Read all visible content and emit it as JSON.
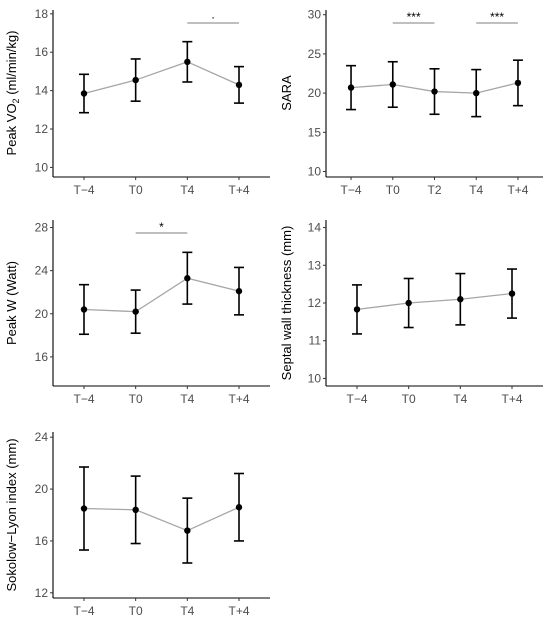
{
  "colors": {
    "axis": "#000000",
    "line": "#a6a6a6",
    "point": "#000000",
    "errorbar": "#000000",
    "bracket": "#7f7f7f",
    "tick_label": "#4d4d4d"
  },
  "chart_data": [
    {
      "id": "peak-vo2",
      "type": "line",
      "ylabel": "Peak VO",
      "ylabel_subscript": "2",
      "ylabel_suffix": " (ml/min/kg)",
      "categories": [
        "T−4",
        "T0",
        "T4",
        "T+4"
      ],
      "values": [
        13.85,
        14.55,
        15.5,
        14.3
      ],
      "errors": [
        1.0,
        1.1,
        1.05,
        0.95
      ],
      "ylim": [
        9.5,
        18.2
      ],
      "yticks": [
        10,
        12,
        14,
        16,
        18
      ],
      "ytick_labels": [
        "10",
        "12",
        "14",
        "16",
        "18"
      ],
      "significance": [
        {
          "from": 2,
          "to": 3,
          "label": "·"
        }
      ]
    },
    {
      "id": "sara",
      "type": "line",
      "ylabel": "SARA",
      "categories": [
        "T−4",
        "T0",
        "T2",
        "T4",
        "T+4"
      ],
      "values": [
        20.7,
        21.1,
        20.2,
        20.0,
        21.3
      ],
      "errors": [
        2.8,
        2.9,
        2.9,
        3.0,
        2.9
      ],
      "ylim": [
        9.3,
        30.6
      ],
      "yticks": [
        10,
        15,
        20,
        25,
        30
      ],
      "ytick_labels": [
        "10",
        "15",
        "20",
        "25",
        "30"
      ],
      "significance": [
        {
          "from": 1,
          "to": 2,
          "label": "***"
        },
        {
          "from": 3,
          "to": 4,
          "label": "***"
        }
      ]
    },
    {
      "id": "peak-w",
      "type": "line",
      "ylabel": "Peak W (Watt)",
      "categories": [
        "T−4",
        "T0",
        "T4",
        "T+4"
      ],
      "values": [
        20.4,
        20.2,
        23.3,
        22.1
      ],
      "errors": [
        2.3,
        2.0,
        2.4,
        2.2
      ],
      "ylim": [
        13.3,
        28.7
      ],
      "yticks": [
        16,
        20,
        24,
        28
      ],
      "ytick_labels": [
        "16",
        "20",
        "24",
        "28"
      ],
      "significance": [
        {
          "from": 1,
          "to": 2,
          "label": "*"
        }
      ]
    },
    {
      "id": "septal-wall-thickness",
      "type": "line",
      "ylabel": "Septal wall thickness (mm)",
      "categories": [
        "T−4",
        "T0",
        "T4",
        "T+4"
      ],
      "values": [
        11.83,
        12.0,
        12.1,
        12.25
      ],
      "errors": [
        0.65,
        0.65,
        0.68,
        0.65
      ],
      "ylim": [
        9.8,
        14.2
      ],
      "yticks": [
        10,
        11,
        12,
        13,
        14
      ],
      "ytick_labels": [
        "10",
        "11",
        "12",
        "13",
        "14"
      ],
      "significance": []
    },
    {
      "id": "sokolow-lyon-index",
      "type": "line",
      "ylabel": "Sokolow−Lyon index (mm)",
      "categories": [
        "T−4",
        "T0",
        "T4",
        "T+4"
      ],
      "values": [
        18.5,
        18.4,
        16.8,
        18.6
      ],
      "errors": [
        3.2,
        2.6,
        2.5,
        2.6
      ],
      "ylim": [
        11.6,
        24.4
      ],
      "yticks": [
        12,
        16,
        20,
        24
      ],
      "ytick_labels": [
        "12",
        "16",
        "20",
        "24"
      ],
      "significance": []
    }
  ]
}
